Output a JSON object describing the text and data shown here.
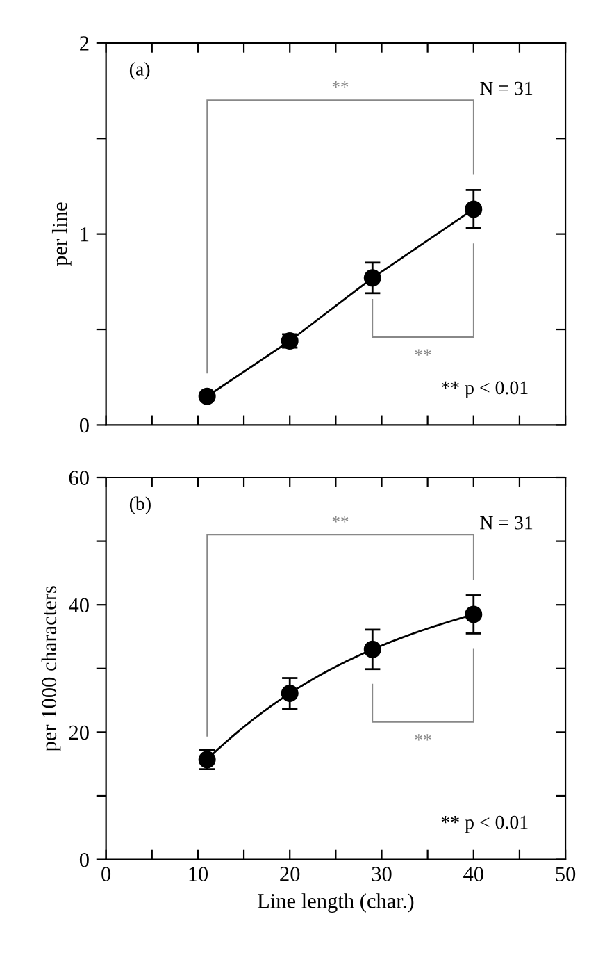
{
  "chart_data": [
    {
      "type": "line",
      "ylabel": "per line",
      "x": [
        11,
        20,
        29,
        40
      ],
      "values": [
        0.15,
        0.44,
        0.77,
        1.13
      ],
      "errors": [
        null,
        0.035,
        0.08,
        0.1
      ],
      "color": "#000000",
      "marker": "circle",
      "line_style": "solid",
      "xlim": [
        0,
        50
      ],
      "xticks": [
        {
          "value": 0,
          "label": null
        },
        {
          "value": 5,
          "label": null
        },
        {
          "value": 10,
          "label": null
        },
        {
          "value": 15,
          "label": null
        },
        {
          "value": 20,
          "label": null
        },
        {
          "value": 25,
          "label": null
        },
        {
          "value": 30,
          "label": null
        },
        {
          "value": 35,
          "label": null
        },
        {
          "value": 40,
          "label": null
        },
        {
          "value": 45,
          "label": null
        },
        {
          "value": 50,
          "label": null
        }
      ],
      "ylim": [
        0,
        2
      ],
      "yticks": [
        0,
        {
          "value": 0.5,
          "label": null
        },
        1,
        {
          "value": 1.5,
          "label": null
        },
        2
      ],
      "tick_labels": "y",
      "grid": false,
      "annotations": [
        "(a)",
        "N = 31",
        "**",
        "**",
        "** p < 0.01"
      ]
    },
    {
      "type": "line",
      "xlabel": "Line length (char.)",
      "ylabel": "per 1000 characters",
      "x": [
        11,
        20,
        29,
        40
      ],
      "values": [
        15.7,
        26.1,
        33.0,
        38.5
      ],
      "errors": [
        1.5,
        2.4,
        3.1,
        3.0
      ],
      "color": "#000000",
      "marker": "circle",
      "line_style": "solid",
      "xlim": [
        0,
        50
      ],
      "xticks": [
        0,
        {
          "value": 5,
          "label": null
        },
        10,
        {
          "value": 15,
          "label": null
        },
        20,
        {
          "value": 25,
          "label": null
        },
        30,
        {
          "value": 35,
          "label": null
        },
        40,
        {
          "value": 45,
          "label": null
        },
        50
      ],
      "ylim": [
        0,
        60
      ],
      "yticks": [
        0,
        {
          "value": 10,
          "label": null
        },
        20,
        {
          "value": 30,
          "label": null
        },
        40,
        {
          "value": 50,
          "label": null
        },
        60
      ],
      "grid": false,
      "annotations": [
        "(b)",
        "N = 31",
        "**",
        "**",
        "** p < 0.01"
      ]
    }
  ]
}
